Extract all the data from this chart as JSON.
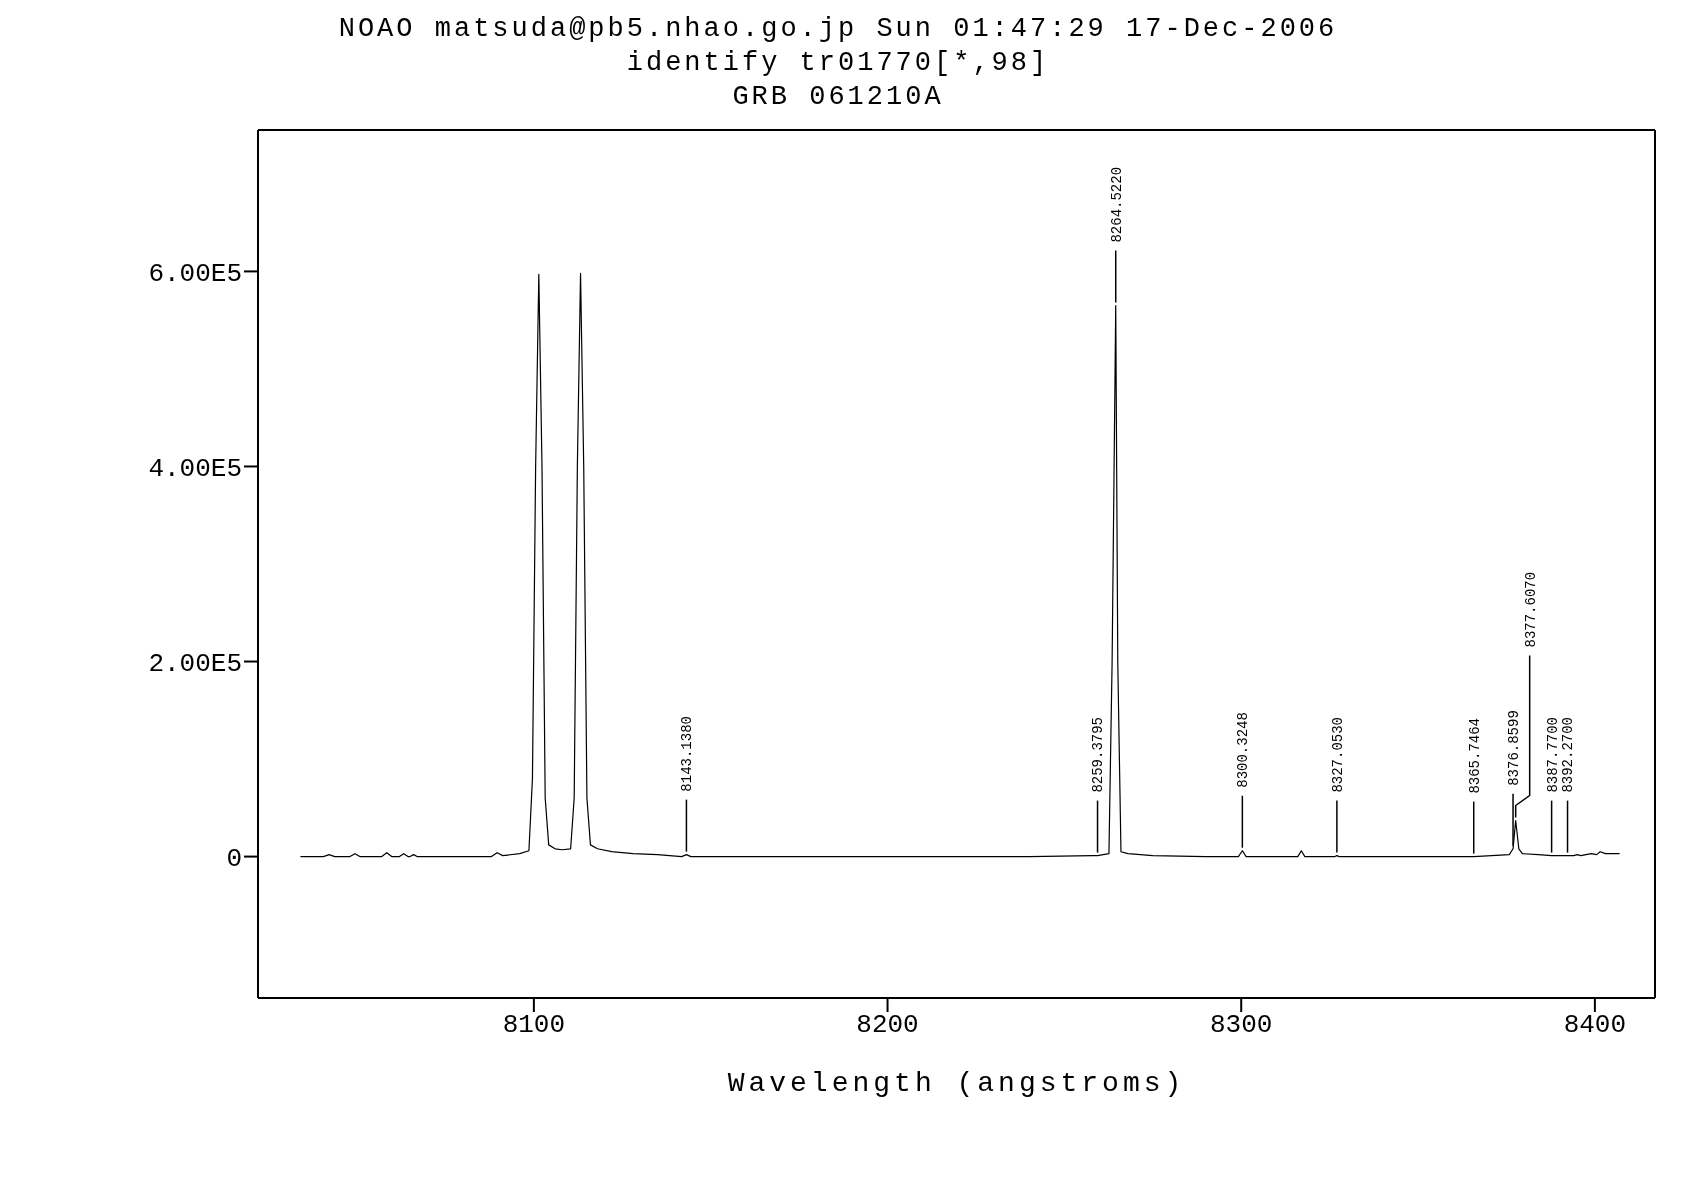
{
  "chart_data": {
    "type": "line",
    "title": "NOAO matsuda@pb5.nhao.go.jp Sun 01:47:29 17-Dec-2006",
    "subtitle": "identify tr01770[*,98]",
    "xlabel": "Wavelength (angstroms)",
    "xlim": [
      8022,
      8417
    ],
    "xticks": [
      8100,
      8200,
      8300,
      8400
    ],
    "ylim": [
      -145000,
      745000
    ],
    "yticks": [
      {
        "value": 0,
        "label": "0"
      },
      {
        "value": 200000,
        "label": "2.00E5"
      },
      {
        "value": 400000,
        "label": "4.00E5"
      },
      {
        "value": 600000,
        "label": "6.00E5"
      }
    ],
    "marker": "none",
    "line_style": "solid",
    "series": [
      {
        "color": "#000000",
        "x": [
          8034,
          8040.5,
          8042.1,
          8043.7,
          8048,
          8049.4,
          8050.8,
          8057,
          8058.4,
          8059.8,
          8062,
          8063.2,
          8064.4,
          8065,
          8066,
          8067,
          8080,
          8088,
          8089.6,
          8091.2,
          8096,
          8098.6,
          8099.6,
          8100.5,
          8101.4,
          8102.3,
          8103.2,
          8104.2,
          8106,
          8108,
          8110.4,
          8111.4,
          8112.3,
          8113.2,
          8114.1,
          8115,
          8116,
          8118,
          8122,
          8128,
          8135,
          8141.8,
          8143.138,
          8144.4,
          8160,
          8200,
          8240,
          8258,
          8259.3795,
          8262.6,
          8263.5,
          8264.522,
          8265.1,
          8266,
          8268,
          8275,
          8290,
          8299.2,
          8300.3248,
          8301.4,
          8316,
          8317,
          8318,
          8326.5,
          8327.053,
          8327.7,
          8365.7464,
          8375.8,
          8376.8599,
          8377.607,
          8378.5,
          8379.5,
          8384,
          8387.77,
          8390,
          8392.27,
          8394,
          8395,
          8396,
          8399,
          8400.5,
          8401.5,
          8403,
          8407
        ],
        "values": [
          0,
          0,
          2000,
          0,
          0,
          3000,
          0,
          0,
          4000,
          0,
          0,
          3000,
          0,
          0,
          2000,
          0,
          0,
          0,
          4000,
          1000,
          3000,
          6000,
          80000,
          400000,
          597000,
          400000,
          60000,
          12000,
          8000,
          7000,
          8000,
          60000,
          400000,
          598000,
          400000,
          60000,
          12000,
          8000,
          5000,
          3000,
          2000,
          0,
          2000,
          0,
          0,
          0,
          0,
          1000,
          1000,
          3000,
          200000,
          565000,
          200000,
          5000,
          3000,
          1000,
          0,
          0,
          6000,
          0,
          0,
          6000,
          0,
          0,
          1000,
          0,
          0,
          2000,
          8000,
          37000,
          8000,
          3000,
          2000,
          1000,
          1000,
          1000,
          1000,
          2000,
          1000,
          3000,
          2000,
          5000,
          3000,
          3000
        ]
      }
    ],
    "annotations": [
      "GRB 061210A",
      {
        "text": "8143.1380",
        "x": 8143.138,
        "y": 2000
      },
      {
        "text": "8259.3795",
        "x": 8259.3795,
        "y": 1000
      },
      {
        "text": "8264.5220",
        "x": 8264.522,
        "y": 565000
      },
      {
        "text": "8300.3248",
        "x": 8300.3248,
        "y": 6000
      },
      {
        "text": "8327.0530",
        "x": 8327.053,
        "y": 1000
      },
      {
        "text": "8365.7464",
        "x": 8365.7464,
        "y": 0
      },
      {
        "text": "8376.8599",
        "x": 8376.8599,
        "y": 8000
      },
      {
        "text": "8377.6070",
        "x": 8377.607,
        "y": 37000
      },
      {
        "text": "8387.7700",
        "x": 8387.77,
        "y": 1000
      },
      {
        "text": "8392.2700",
        "x": 8392.27,
        "y": 1000
      }
    ]
  }
}
